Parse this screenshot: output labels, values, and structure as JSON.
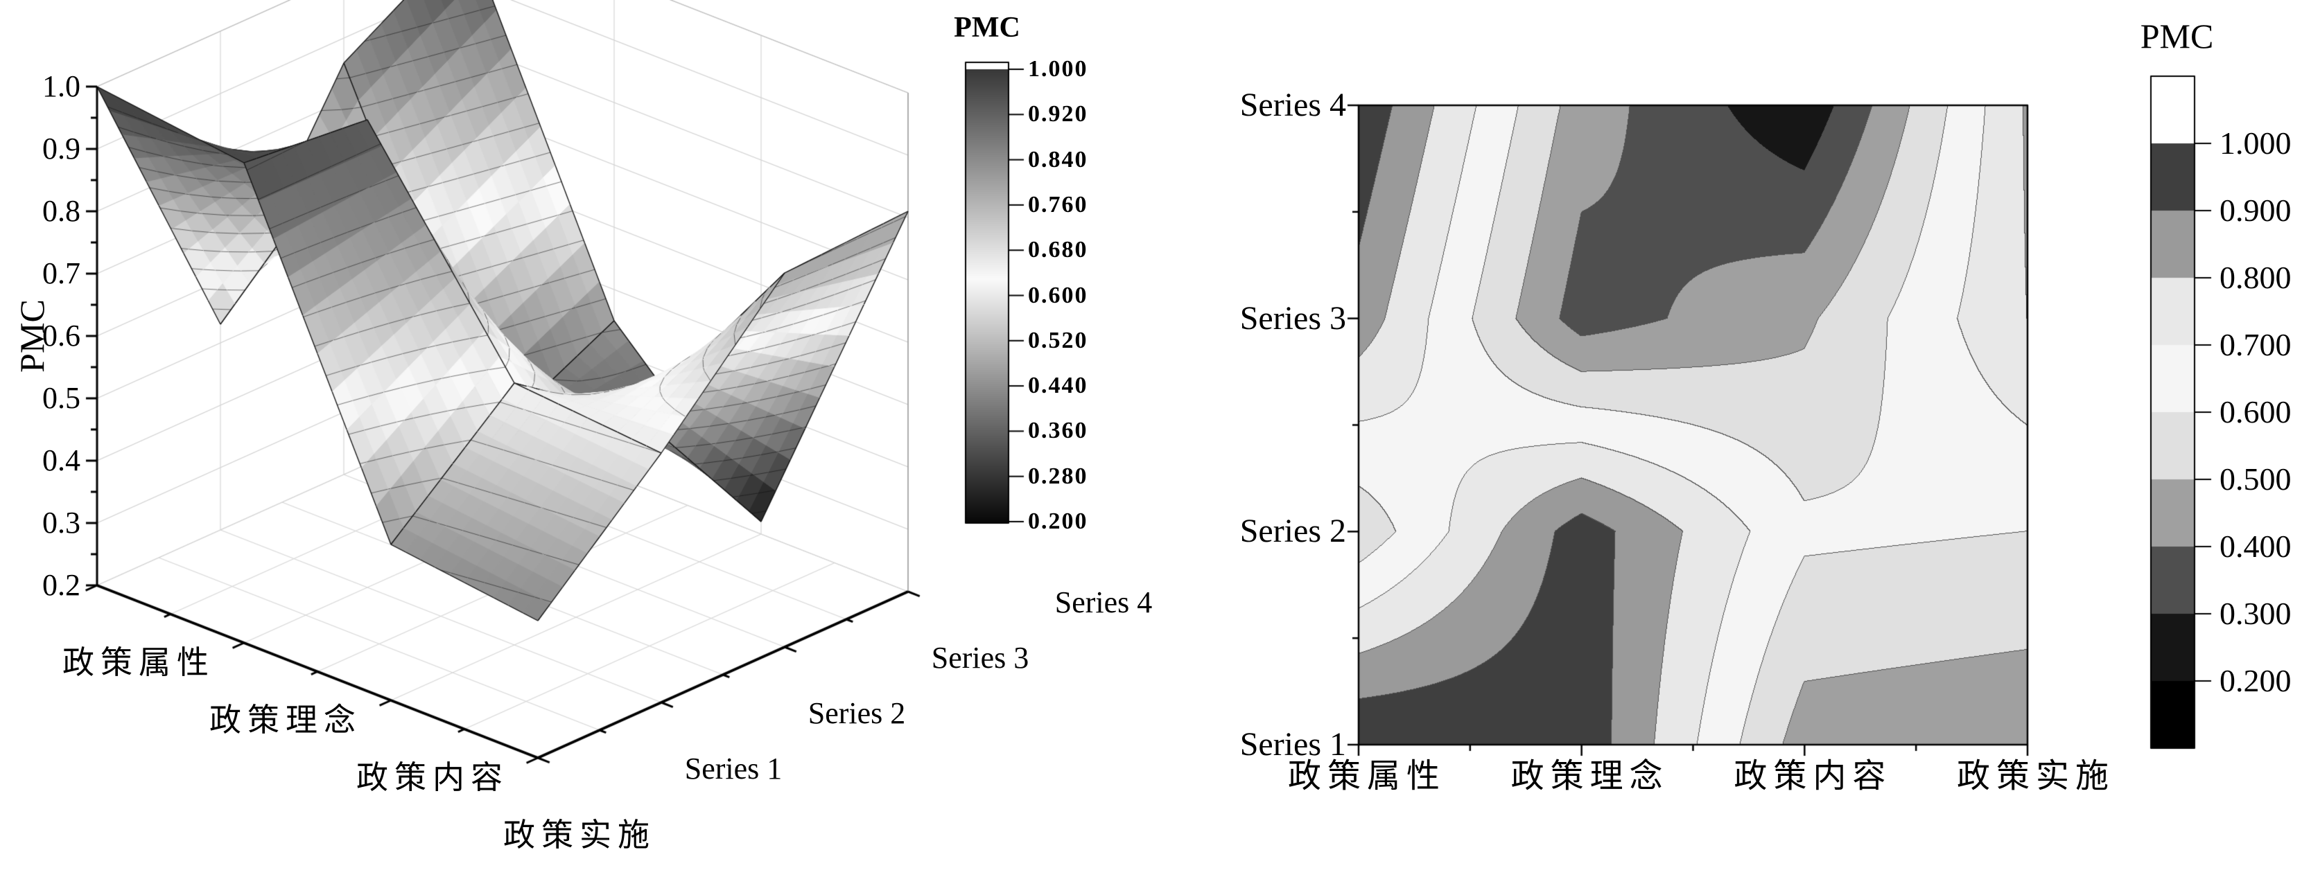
{
  "surface_panel": {
    "z_axis": {
      "title": "PMC",
      "tick_labels": [
        "1.0",
        "0.9",
        "0.8",
        "0.7",
        "0.6",
        "0.5",
        "0.4",
        "0.3",
        "0.2"
      ]
    },
    "x_axis": {
      "labels": [
        "政策属性",
        "政策理念",
        "政策内容",
        "政策实施"
      ]
    },
    "y_axis": {
      "labels": [
        "Series 1",
        "Series 2",
        "Series 3",
        "Series 4"
      ]
    },
    "colorbar": {
      "title": "PMC",
      "tick_labels": [
        "1.000",
        "0.920",
        "0.840",
        "0.760",
        "0.680",
        "0.600",
        "0.520",
        "0.440",
        "0.360",
        "0.280",
        "0.200"
      ]
    }
  },
  "contour_panel": {
    "x_axis": {
      "labels": [
        "政策属性",
        "政策理念",
        "政策内容",
        "政策实施"
      ]
    },
    "y_axis": {
      "labels": [
        "Series 1",
        "Series 2",
        "Series 3",
        "Series 4"
      ]
    },
    "legend": {
      "title": "PMC",
      "tick_labels": [
        "1.000",
        "0.900",
        "0.800",
        "0.700",
        "0.600",
        "0.500",
        "0.400",
        "0.300",
        "0.200"
      ]
    }
  },
  "chart_data": [
    {
      "type": "surface",
      "title": "PMC 3D surface",
      "categories": [
        "政策属性",
        "政策理念",
        "政策内容",
        "政策实施"
      ],
      "series": [
        "Series 1",
        "Series 2",
        "Series 3",
        "Series 4"
      ],
      "values": [
        [
          1.0,
          0.97,
          0.45,
          0.42
        ],
        [
          0.53,
          0.95,
          0.62,
          0.6
        ],
        [
          0.86,
          0.35,
          0.48,
          0.8
        ],
        [
          0.98,
          0.45,
          0.22,
          0.81
        ]
      ],
      "zlabel": "PMC",
      "zlim": [
        0.2,
        1.0
      ],
      "z_ticks": [
        1.0,
        0.9,
        0.8,
        0.7,
        0.6,
        0.5,
        0.4,
        0.3,
        0.2
      ],
      "colorbar_title": "PMC",
      "colorbar_ticks": [
        1.0,
        0.92,
        0.84,
        0.76,
        0.68,
        0.6,
        0.52,
        0.44,
        0.36,
        0.28,
        0.2
      ],
      "colormap_anchors": [
        {
          "z": 0.2,
          "gray": 8
        },
        {
          "z": 0.63,
          "gray": 250
        },
        {
          "z": 1.0,
          "gray": 56
        }
      ],
      "grid": "on"
    },
    {
      "type": "heatmap",
      "subtype": "filled-contour",
      "title": "PMC filled contour",
      "categories": [
        "政策属性",
        "政策理念",
        "政策内容",
        "政策实施"
      ],
      "series": [
        "Series 1",
        "Series 2",
        "Series 3",
        "Series 4"
      ],
      "values": [
        [
          1.0,
          0.97,
          0.45,
          0.42
        ],
        [
          0.53,
          0.95,
          0.62,
          0.6
        ],
        [
          0.86,
          0.35,
          0.48,
          0.8
        ],
        [
          0.98,
          0.45,
          0.22,
          0.81
        ]
      ],
      "levels": [
        0.2,
        0.3,
        0.4,
        0.5,
        0.6,
        0.7,
        0.8,
        0.9,
        1.0
      ],
      "band_colors_low_to_high": [
        "#000000",
        "#161616",
        "#4f4f4f",
        "#a0a0a0",
        "#e0e0e0",
        "#f5f5f5",
        "#e8e8e8",
        "#9a9a9a",
        "#3f3f3f",
        "#ffffff"
      ],
      "legend_title": "PMC",
      "legend_position": "right"
    }
  ]
}
